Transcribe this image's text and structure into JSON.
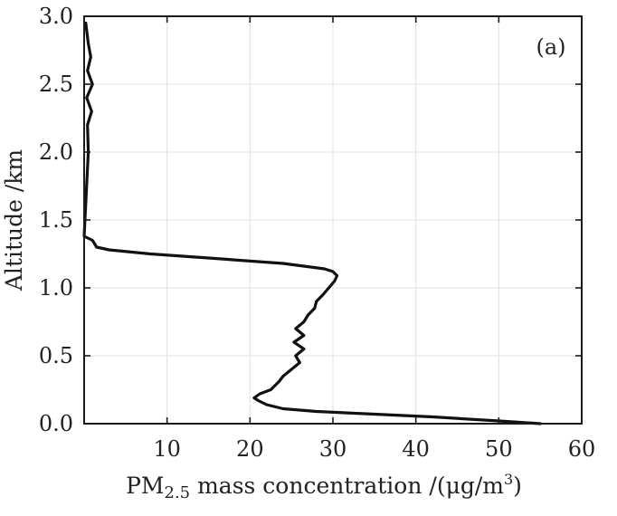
{
  "chart_data": {
    "type": "line",
    "title": "",
    "panel_label": "(a)",
    "xlabel": "PM2.5 mass concentration /(μg/m3)",
    "xlabel_parts": {
      "pre": "PM",
      "sub": "2.5",
      "mid": " mass concentration /(μg/m",
      "sup": "3",
      "post": ")"
    },
    "ylabel": "Altitude /km",
    "xlim": [
      0,
      60
    ],
    "ylim": [
      0,
      3.0
    ],
    "xticks": [
      10,
      20,
      30,
      40,
      50,
      60
    ],
    "xtick_labels": [
      "10",
      "20",
      "30",
      "40",
      "50",
      "60"
    ],
    "yticks": [
      0.0,
      0.5,
      1.0,
      1.5,
      2.0,
      2.5,
      3.0
    ],
    "ytick_labels": [
      "0.0",
      "0.5",
      "1.0",
      "1.5",
      "2.0",
      "2.5",
      "3.0"
    ],
    "grid": true,
    "series": [
      {
        "color": "#111111",
        "x": [
          55.0,
          50.0,
          42.0,
          35.0,
          28.0,
          24.0,
          22.0,
          21.0,
          20.5,
          21.2,
          22.5,
          23.0,
          23.5,
          24.0,
          25.0,
          26.0,
          25.5,
          26.5,
          25.3,
          26.5,
          25.5,
          26.5,
          27.0,
          27.8,
          28.0,
          28.8,
          29.5,
          30.2,
          30.5,
          30.0,
          29.0,
          24.0,
          15.0,
          8.0,
          3.0,
          1.5,
          1.0,
          0.0,
          0.5,
          0.4,
          0.9,
          0.3,
          1.0,
          0.4,
          0.8,
          0.5,
          0.2
        ],
        "y": [
          0.0,
          0.02,
          0.05,
          0.07,
          0.09,
          0.11,
          0.14,
          0.17,
          0.19,
          0.22,
          0.25,
          0.28,
          0.31,
          0.35,
          0.4,
          0.45,
          0.5,
          0.55,
          0.6,
          0.65,
          0.7,
          0.75,
          0.8,
          0.85,
          0.9,
          0.95,
          1.0,
          1.05,
          1.09,
          1.12,
          1.14,
          1.18,
          1.22,
          1.25,
          1.28,
          1.3,
          1.35,
          1.38,
          2.0,
          2.2,
          2.3,
          2.4,
          2.5,
          2.6,
          2.7,
          2.8,
          2.95
        ]
      }
    ]
  }
}
